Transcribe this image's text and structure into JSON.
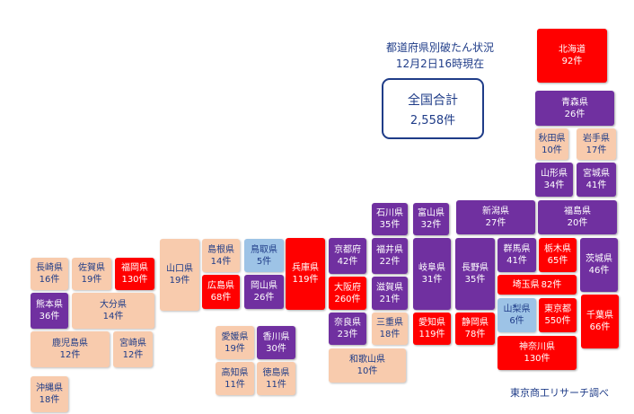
{
  "title_line1": "都道府県別破たん状況",
  "title_line2": "12月2日16時現在",
  "total_label": "全国合計",
  "total_value": "2,558件",
  "source": "東京商工リサーチ調べ",
  "colors": {
    "red": "#ff0000",
    "purple": "#7030a0",
    "peach": "#f8cbad",
    "blue": "#9dc3e6",
    "text": "#1f3c88"
  },
  "prefectures": [
    {
      "name": "北海道",
      "count": "92件"
    },
    {
      "name": "青森県",
      "count": "26件"
    },
    {
      "name": "秋田県",
      "count": "10件"
    },
    {
      "name": "岩手県",
      "count": "17件"
    },
    {
      "name": "山形県",
      "count": "34件"
    },
    {
      "name": "宮城県",
      "count": "41件"
    },
    {
      "name": "福島県",
      "count": "20件"
    },
    {
      "name": "新潟県",
      "count": "27件"
    },
    {
      "name": "石川県",
      "count": "35件"
    },
    {
      "name": "富山県",
      "count": "32件"
    },
    {
      "name": "京都府",
      "count": "42件"
    },
    {
      "name": "福井県",
      "count": "22件"
    },
    {
      "name": "岐阜県",
      "count": "31件"
    },
    {
      "name": "長野県",
      "count": "35件"
    },
    {
      "name": "群馬県",
      "count": "41件"
    },
    {
      "name": "栃木県",
      "count": "65件"
    },
    {
      "name": "茨城県",
      "count": "46件"
    },
    {
      "name": "埼玉県",
      "count": "82件"
    },
    {
      "name": "大阪府",
      "count": "260件"
    },
    {
      "name": "滋賀県",
      "count": "21件"
    },
    {
      "name": "山梨県",
      "count": "6件"
    },
    {
      "name": "東京都",
      "count": "550件"
    },
    {
      "name": "千葉県",
      "count": "66件"
    },
    {
      "name": "奈良県",
      "count": "23件"
    },
    {
      "name": "三重県",
      "count": "18件"
    },
    {
      "name": "愛知県",
      "count": "119件"
    },
    {
      "name": "静岡県",
      "count": "78件"
    },
    {
      "name": "神奈川県",
      "count": "130件"
    },
    {
      "name": "和歌山県",
      "count": "10件"
    },
    {
      "name": "兵庫県",
      "count": "119件"
    },
    {
      "name": "鳥取県",
      "count": "5件"
    },
    {
      "name": "島根県",
      "count": "14件"
    },
    {
      "name": "岡山県",
      "count": "26件"
    },
    {
      "name": "広島県",
      "count": "68件"
    },
    {
      "name": "山口県",
      "count": "19件"
    },
    {
      "name": "愛媛県",
      "count": "19件"
    },
    {
      "name": "香川県",
      "count": "30件"
    },
    {
      "name": "高知県",
      "count": "11件"
    },
    {
      "name": "徳島県",
      "count": "11件"
    },
    {
      "name": "長崎県",
      "count": "16件"
    },
    {
      "name": "佐賀県",
      "count": "19件"
    },
    {
      "name": "福岡県",
      "count": "130件"
    },
    {
      "name": "熊本県",
      "count": "36件"
    },
    {
      "name": "大分県",
      "count": "14件"
    },
    {
      "name": "鹿児島県",
      "count": "12件"
    },
    {
      "name": "宮崎県",
      "count": "12件"
    },
    {
      "name": "沖縄県",
      "count": "18件"
    }
  ]
}
